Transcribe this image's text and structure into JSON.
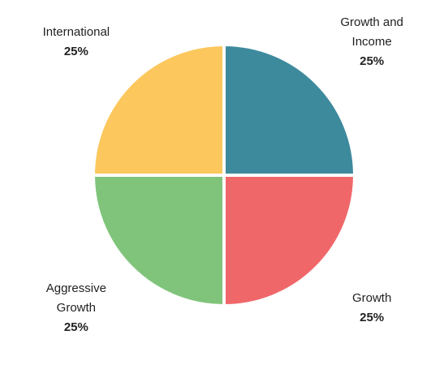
{
  "chart_data": {
    "type": "pie",
    "categories": [
      "Growth and Income",
      "Growth",
      "Aggressive Growth",
      "International"
    ],
    "values": [
      25,
      25,
      25,
      25
    ],
    "value_labels": [
      "25%",
      "25%",
      "25%",
      "25%"
    ],
    "colors": [
      "#3e8a9d",
      "#f0676a",
      "#80c47b",
      "#fcc75d"
    ]
  }
}
